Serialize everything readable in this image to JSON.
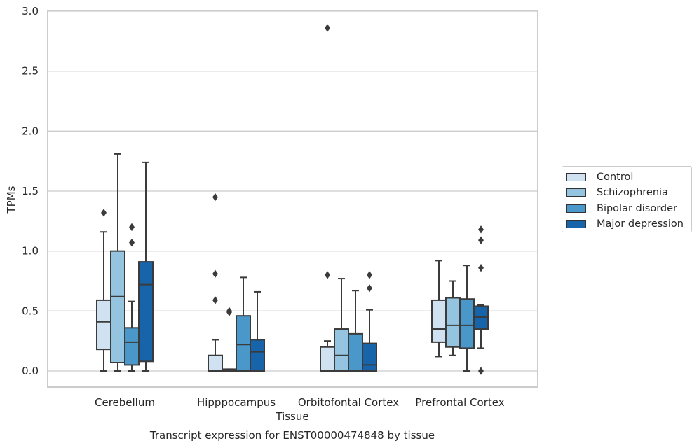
{
  "chart_data": {
    "type": "boxplot",
    "xlabel": "Tissue",
    "ylabel": "TPMs",
    "caption": "Transcript expression for ENST00000474848 by tissue",
    "ylim": [
      -0.13,
      3.0
    ],
    "yticks": [
      "0.0",
      "0.5",
      "1.0",
      "1.5",
      "2.0",
      "2.5",
      "3.0"
    ],
    "categories": [
      "Cerebellum",
      "Hipppocampus",
      "Orbitofontal Cortex",
      "Prefrontal Cortex"
    ],
    "legend_position": "right",
    "grid": true,
    "series": [
      {
        "name": "Control",
        "color": "#d0e1f2",
        "boxes": [
          {
            "whislo": 0.0,
            "q1": 0.18,
            "med": 0.41,
            "q3": 0.59,
            "whishi": 1.16,
            "fliers": [
              1.32
            ]
          },
          {
            "whislo": 0.0,
            "q1": 0.0,
            "med": 0.0,
            "q3": 0.13,
            "whishi": 0.26,
            "fliers": [
              0.59,
              0.81,
              1.45
            ]
          },
          {
            "whislo": 0.0,
            "q1": 0.0,
            "med": 0.0,
            "q3": 0.2,
            "whishi": 0.25,
            "fliers": [
              0.8,
              2.86
            ]
          },
          {
            "whislo": 0.12,
            "q1": 0.24,
            "med": 0.35,
            "q3": 0.59,
            "whishi": 0.92,
            "fliers": []
          }
        ]
      },
      {
        "name": "Schizophrenia",
        "color": "#94c4df",
        "boxes": [
          {
            "whislo": 0.0,
            "q1": 0.07,
            "med": 0.62,
            "q3": 1.0,
            "whishi": 1.81,
            "fliers": []
          },
          {
            "whislo": 0.0,
            "q1": 0.0,
            "med": 0.0,
            "q3": 0.015,
            "whishi": 0.015,
            "fliers": [
              0.49,
              0.5
            ]
          },
          {
            "whislo": 0.0,
            "q1": 0.0,
            "med": 0.13,
            "q3": 0.35,
            "whishi": 0.77,
            "fliers": []
          },
          {
            "whislo": 0.13,
            "q1": 0.2,
            "med": 0.38,
            "q3": 0.61,
            "whishi": 0.75,
            "fliers": []
          }
        ]
      },
      {
        "name": "Bipolar disorder",
        "color": "#4a98c9",
        "boxes": [
          {
            "whislo": 0.0,
            "q1": 0.05,
            "med": 0.24,
            "q3": 0.36,
            "whishi": 0.58,
            "fliers": [
              1.07,
              1.2
            ]
          },
          {
            "whislo": 0.0,
            "q1": 0.0,
            "med": 0.22,
            "q3": 0.46,
            "whishi": 0.78,
            "fliers": []
          },
          {
            "whislo": 0.0,
            "q1": 0.0,
            "med": 0.0,
            "q3": 0.31,
            "whishi": 0.67,
            "fliers": []
          },
          {
            "whislo": 0.0,
            "q1": 0.19,
            "med": 0.38,
            "q3": 0.6,
            "whishi": 0.88,
            "fliers": []
          }
        ]
      },
      {
        "name": "Major depression",
        "color": "#1764ab",
        "boxes": [
          {
            "whislo": 0.0,
            "q1": 0.08,
            "med": 0.72,
            "q3": 0.91,
            "whishi": 1.74,
            "fliers": []
          },
          {
            "whislo": 0.0,
            "q1": 0.0,
            "med": 0.16,
            "q3": 0.26,
            "whishi": 0.66,
            "fliers": []
          },
          {
            "whislo": 0.0,
            "q1": 0.0,
            "med": 0.05,
            "q3": 0.23,
            "whishi": 0.51,
            "fliers": [
              0.69,
              0.8
            ]
          },
          {
            "whislo": 0.19,
            "q1": 0.35,
            "med": 0.45,
            "q3": 0.54,
            "whishi": 0.55,
            "fliers": [
              0.0,
              0.86,
              1.09,
              1.18
            ]
          }
        ]
      }
    ]
  }
}
